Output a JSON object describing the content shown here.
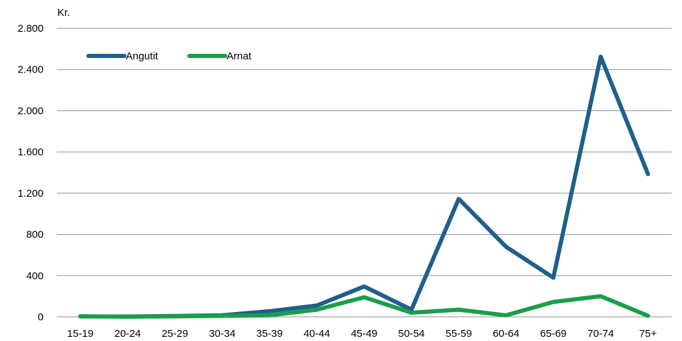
{
  "chart_data": {
    "type": "line",
    "unit_label": "Kr.",
    "categories": [
      "15-19",
      "20-24",
      "25-29",
      "30-34",
      "35-39",
      "40-44",
      "45-49",
      "50-54",
      "55-59",
      "60-64",
      "65-69",
      "70-74",
      "75+"
    ],
    "y_ticks": [
      {
        "value": 0,
        "label": "0"
      },
      {
        "value": 400,
        "label": "400"
      },
      {
        "value": 800,
        "label": "800"
      },
      {
        "value": 1200,
        "label": "1.200"
      },
      {
        "value": 1600,
        "label": "1.600"
      },
      {
        "value": 2000,
        "label": "2.000"
      },
      {
        "value": 2400,
        "label": "2.400"
      },
      {
        "value": 2800,
        "label": "2.800"
      }
    ],
    "ylim": [
      0,
      2800
    ],
    "grid": "horizontal",
    "legend_position": "top-left",
    "series": [
      {
        "name": "Angutit",
        "color": "#1f5f8b",
        "values": [
          5,
          3,
          8,
          15,
          55,
          110,
          295,
          70,
          1145,
          680,
          380,
          2525,
          1385
        ]
      },
      {
        "name": "Arnat",
        "color": "#1a9e4a",
        "values": [
          5,
          2,
          5,
          10,
          15,
          70,
          190,
          40,
          70,
          15,
          145,
          200,
          10
        ]
      }
    ]
  }
}
